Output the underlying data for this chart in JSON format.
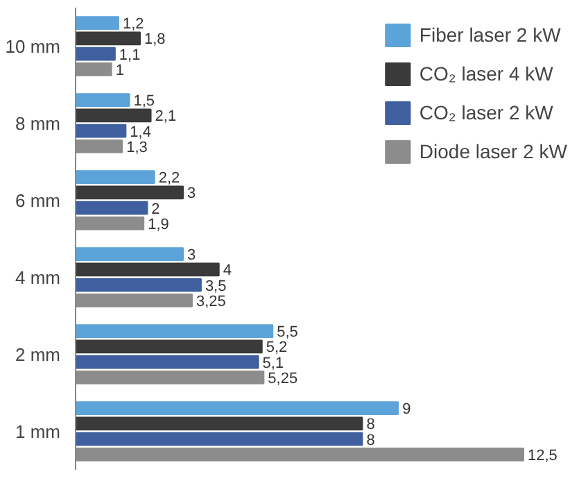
{
  "chart_data": {
    "type": "bar",
    "orientation": "horizontal",
    "categories": [
      "10 mm",
      "8 mm",
      "6 mm",
      "4 mm",
      "2 mm",
      "1 mm"
    ],
    "series": [
      {
        "name": "Fiber laser 2 kW",
        "color": "#5ba3d9",
        "values": [
          1.2,
          1.5,
          2.2,
          3,
          5.5,
          9
        ],
        "value_labels": [
          "1,2",
          "1,5",
          "2,2",
          "3",
          "5,5",
          "9"
        ]
      },
      {
        "name": "CO₂ laser 4 kW",
        "color": "#3a3a3a",
        "values": [
          1.8,
          2.1,
          3,
          4,
          5.2,
          8
        ],
        "value_labels": [
          "1,8",
          "2,1",
          "3",
          "4",
          "5,2",
          "8"
        ]
      },
      {
        "name": "CO₂ laser 2 kW",
        "color": "#3f5f9f",
        "values": [
          1.1,
          1.4,
          2,
          3.5,
          5.1,
          8
        ],
        "value_labels": [
          "1,1",
          "1,4",
          "2",
          "3,5",
          "5,1",
          "8"
        ]
      },
      {
        "name": "Diode laser 2 kW",
        "color": "#8c8c8c",
        "values": [
          1,
          1.3,
          1.9,
          3.25,
          5.25,
          12.5
        ],
        "value_labels": [
          "1",
          "1,3",
          "1,9",
          "3,25",
          "5,25",
          "12,5"
        ]
      }
    ],
    "tick_labels": "y",
    "grid": false,
    "legend": "top right"
  }
}
